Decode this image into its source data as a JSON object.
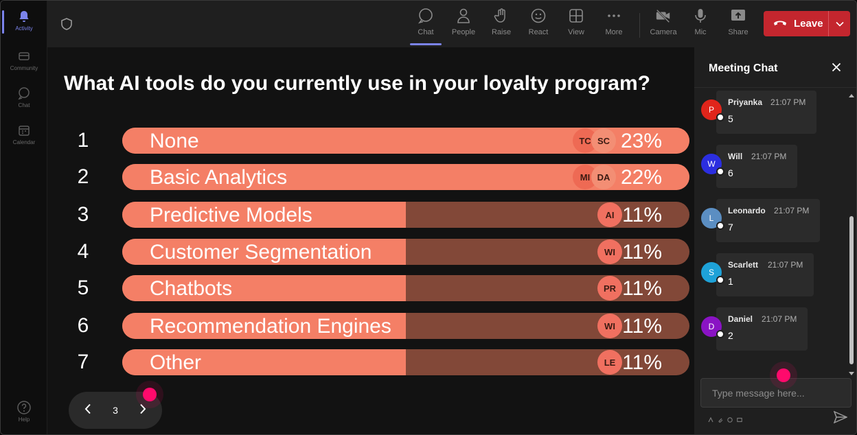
{
  "rail": {
    "items": [
      {
        "label": "Activity",
        "icon": "bell-icon",
        "active": true
      },
      {
        "label": "Community",
        "icon": "community-icon"
      },
      {
        "label": "Chat",
        "icon": "chat-icon"
      },
      {
        "label": "Calendar",
        "icon": "calendar-icon"
      }
    ],
    "help": {
      "label": "Help",
      "icon": "help-icon"
    }
  },
  "toolbar": {
    "buttons": [
      {
        "label": "Chat",
        "icon": "chat-icon",
        "active": true
      },
      {
        "label": "People",
        "icon": "people-icon"
      },
      {
        "label": "Raise",
        "icon": "raise-hand-icon"
      },
      {
        "label": "React",
        "icon": "react-icon"
      },
      {
        "label": "View",
        "icon": "view-icon"
      },
      {
        "label": "More",
        "icon": "more-icon"
      },
      {
        "label": "Camera",
        "icon": "camera-off-icon"
      },
      {
        "label": "Mic",
        "icon": "mic-icon"
      },
      {
        "label": "Share",
        "icon": "share-icon"
      }
    ],
    "leave_label": "Leave"
  },
  "poll": {
    "question": "What AI tools do you currently use in your loyalty program?",
    "options": [
      {
        "number": "1",
        "label": "None",
        "percent": "23%",
        "fill": 1.0,
        "avatars": [
          "TC",
          "SC"
        ]
      },
      {
        "number": "2",
        "label": "Basic Analytics",
        "percent": "22%",
        "fill": 1.0,
        "avatars": [
          "MI",
          "DA"
        ]
      },
      {
        "number": "3",
        "label": "Predictive Models",
        "percent": "11%",
        "fill": 0.5,
        "avatars": [
          "AI"
        ]
      },
      {
        "number": "4",
        "label": "Customer Segmentation",
        "percent": "11%",
        "fill": 0.5,
        "avatars": [
          "WI"
        ]
      },
      {
        "number": "5",
        "label": "Chatbots",
        "percent": "11%",
        "fill": 0.5,
        "avatars": [
          "PR"
        ]
      },
      {
        "number": "6",
        "label": "Recommendation Engines",
        "percent": "11%",
        "fill": 0.5,
        "avatars": [
          "WI"
        ]
      },
      {
        "number": "7",
        "label": "Other",
        "percent": "11%",
        "fill": 0.5,
        "avatars": [
          "LE"
        ]
      }
    ],
    "page": "3"
  },
  "chat": {
    "title": "Meeting Chat",
    "messages": [
      {
        "initial": "P",
        "name": "Priyanka",
        "time": "21:07 PM",
        "text": "5",
        "color": "#e0251b"
      },
      {
        "initial": "W",
        "name": "Will",
        "time": "21:07 PM",
        "text": "6",
        "color": "#2b2ee0"
      },
      {
        "initial": "L",
        "name": "Leonardo",
        "time": "21:07 PM",
        "text": "7",
        "color": "#5b8ec2"
      },
      {
        "initial": "S",
        "name": "Scarlett",
        "time": "21:07 PM",
        "text": "1",
        "color": "#1ea2d8"
      },
      {
        "initial": "D",
        "name": "Daniel",
        "time": "21:07 PM",
        "text": "2",
        "color": "#8a13c4"
      }
    ],
    "input_placeholder": "Type message here..."
  },
  "colors": {
    "accent": "#7b83eb",
    "leave": "#c4262e",
    "bar_fill": "#f47f66",
    "bar_track": "#824838",
    "cursor": "#ff0a6c"
  }
}
